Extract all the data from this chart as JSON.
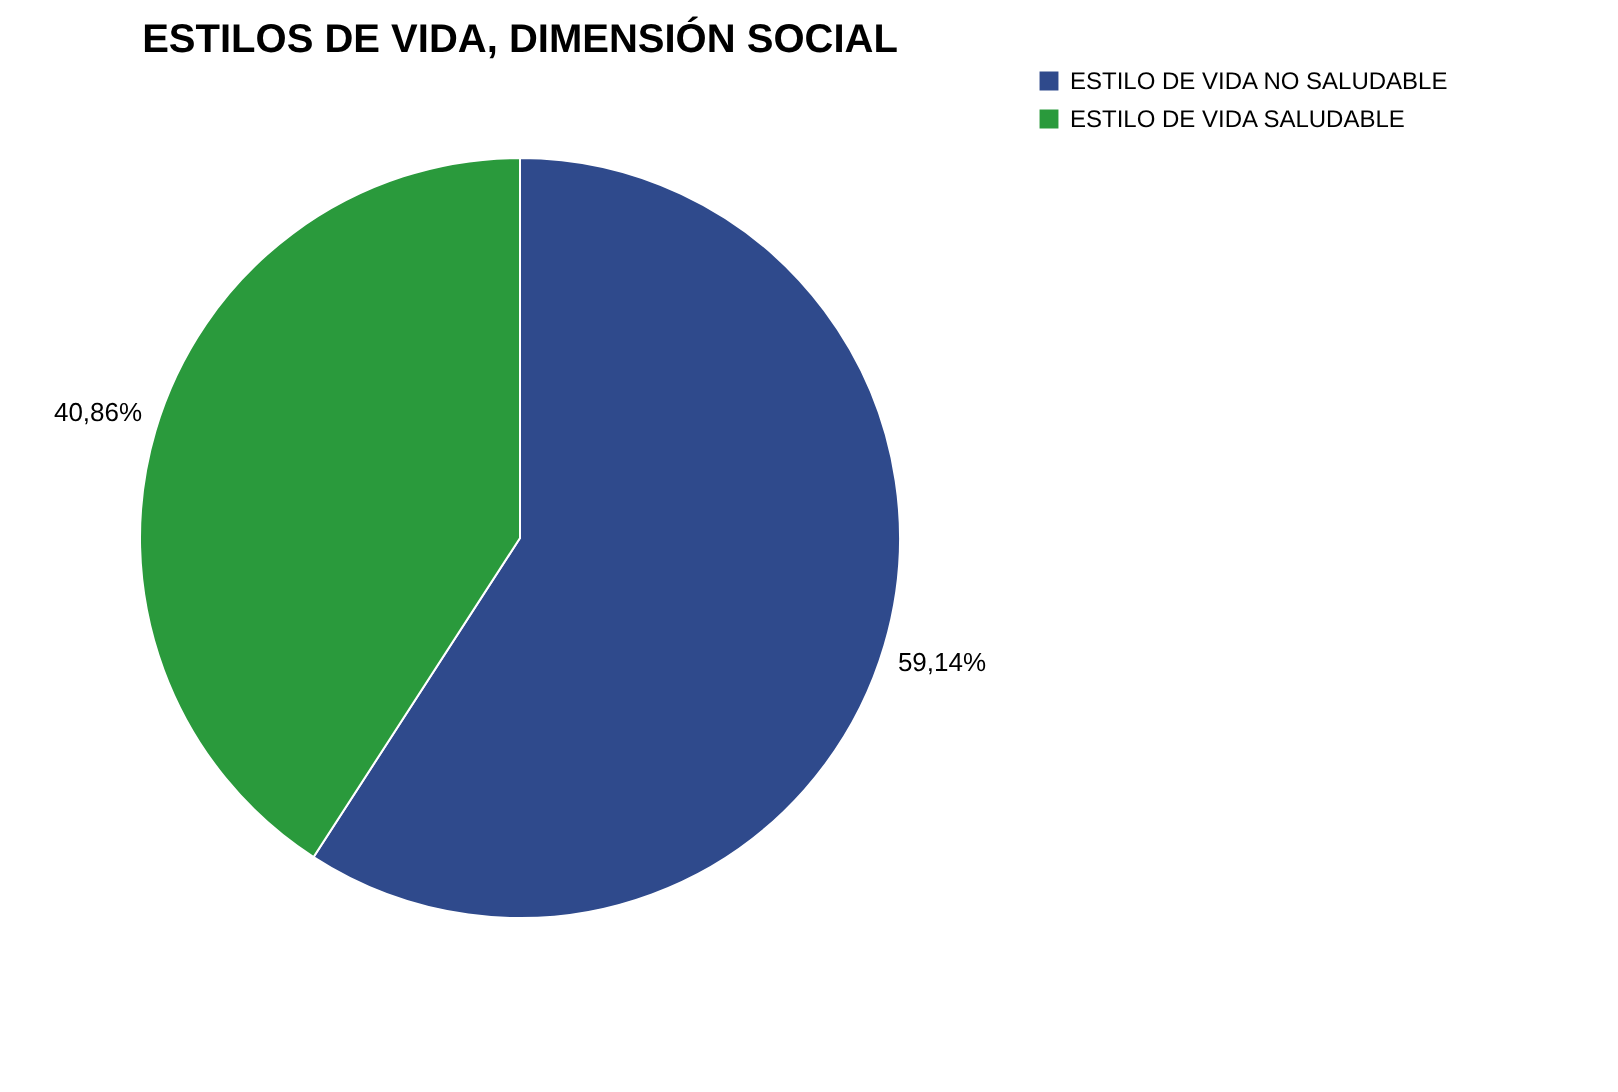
{
  "chart_data": {
    "type": "pie",
    "title": "ESTILOS DE VIDA, DIMENSIÓN SOCIAL",
    "categories": [
      "ESTILO DE VIDA NO SALUDABLE",
      "ESTILO DE VIDA SALUDABLE"
    ],
    "values": [
      59.14,
      40.86
    ],
    "colors": [
      "#2f4a8c",
      "#2a9a3c"
    ],
    "value_labels": [
      "59,14%",
      "40,86%"
    ],
    "legend": "top right"
  }
}
